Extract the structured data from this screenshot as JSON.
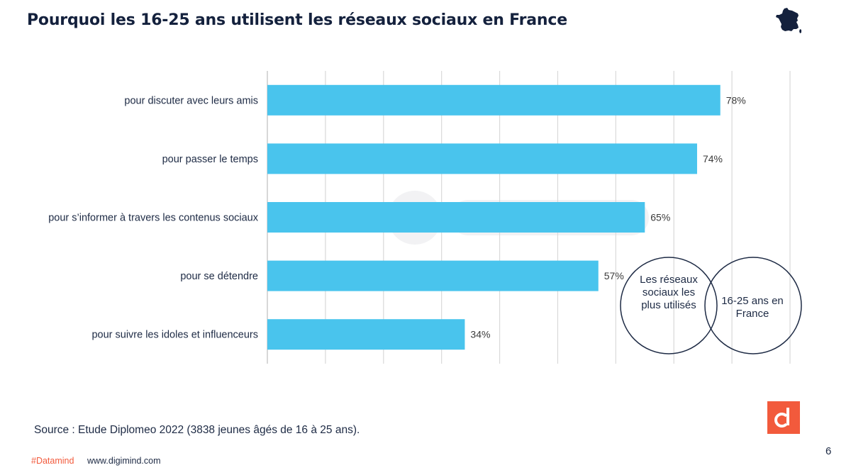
{
  "slide": {
    "title": "Pourquoi les 16-25 ans utilisent les réseaux sociaux en France",
    "source": "Source : Etude Diplomeo 2022 (3838 jeunes âgés de 16 à 25 ans).",
    "hashtag": "#Datamind",
    "website": "www.digimind.com",
    "page_number": "6",
    "flag_icon": "france-map-icon",
    "brand_icon": "digimind-logo-icon"
  },
  "venn": {
    "left_label": "Les réseaux sociaux les plus utilisés",
    "right_label": "16-25 ans en France"
  },
  "colors": {
    "bar": "#49c4ed",
    "title": "#14213d",
    "accent": "#f25a3c",
    "grid": "#d9d9d9"
  },
  "chart_data": {
    "type": "bar",
    "orientation": "horizontal",
    "categories": [
      "pour discuter avec leurs amis",
      "pour passer le temps",
      "pour s’informer à travers les contenus sociaux",
      "pour se détendre",
      "pour suivre les idoles et influenceurs"
    ],
    "values": [
      78,
      74,
      65,
      57,
      34
    ],
    "data_labels": [
      "78%",
      "74%",
      "65%",
      "57%",
      "34%"
    ],
    "xlim": [
      0,
      90
    ],
    "grid": true,
    "legend": "none"
  }
}
